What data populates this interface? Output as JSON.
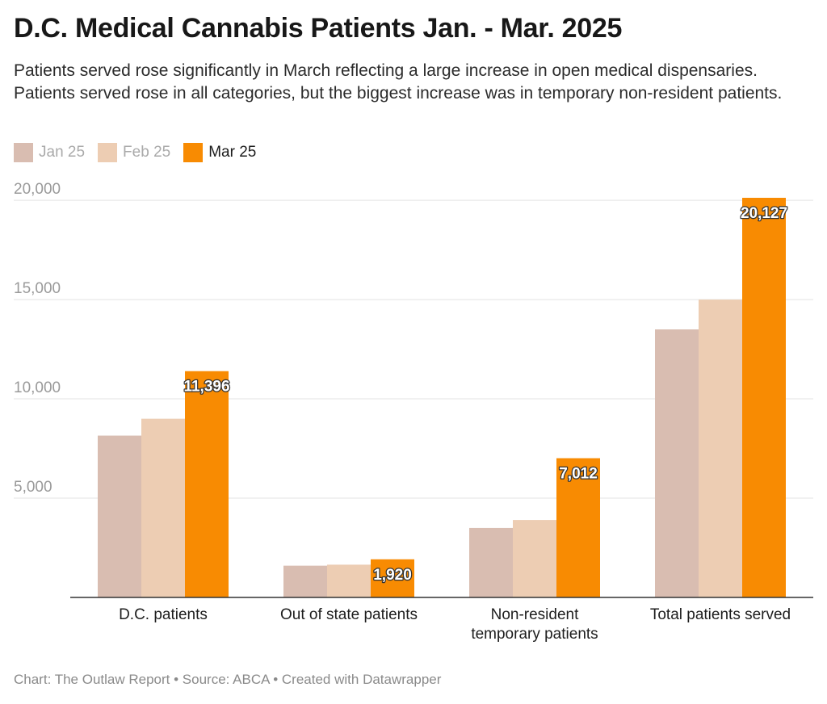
{
  "header": {
    "title": "D.C. Medical Cannabis Patients Jan. - Mar. 2025",
    "subtitle": "Patients served rose significantly in March reflecting a large increase in open medical dispensaries. Patients served rose in all categories, but the biggest increase was in temporary non-resident patients."
  },
  "legend": [
    {
      "label": "Jan 25",
      "color": "#d9bdb1",
      "text_color": "#aaaaaa"
    },
    {
      "label": "Feb 25",
      "color": "#edcdb3",
      "text_color": "#aaaaaa"
    },
    {
      "label": "Mar 25",
      "color": "#f88b02",
      "text_color": "#1d1d1d"
    }
  ],
  "chart_data": {
    "type": "bar",
    "categories": [
      "D.C. patients",
      "Out of state patients",
      "Non-resident\ntemporary patients",
      "Total patients served"
    ],
    "series": [
      {
        "name": "Jan 25",
        "values": [
          8150,
          1600,
          3500,
          13500
        ],
        "color": "#d9bdb1"
      },
      {
        "name": "Feb 25",
        "values": [
          9000,
          1650,
          3900,
          15000
        ],
        "color": "#edcdb3"
      },
      {
        "name": "Mar 25",
        "values": [
          11396,
          1920,
          7012,
          20127
        ],
        "color": "#f88b02"
      }
    ],
    "data_labels": [
      "11,396",
      "1,920",
      "7,012",
      "20,127"
    ],
    "y_ticks": [
      {
        "value": 5000,
        "label": "5,000"
      },
      {
        "value": 10000,
        "label": "10,000"
      },
      {
        "value": 15000,
        "label": "15,000"
      },
      {
        "value": 20000,
        "label": "20,000"
      }
    ],
    "ylim": [
      0,
      20127
    ],
    "grid": true,
    "legend_position": "top-left"
  },
  "footer": {
    "text": "Chart: The Outlaw Report • Source: ABCA • Created with Datawrapper"
  }
}
